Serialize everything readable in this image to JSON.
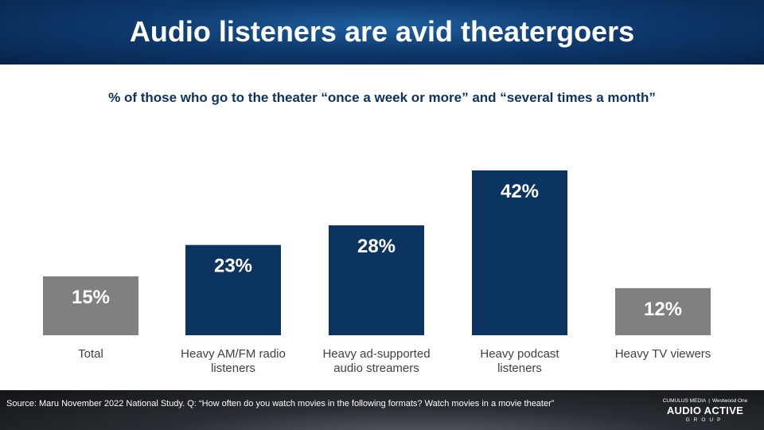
{
  "title": "Audio listeners are avid theatergoers",
  "subtitle": "% of those who go to the theater “once a week or more” and “several times a month”",
  "colors": {
    "gray": "#808080",
    "navy": "#0c3461",
    "header": "#0e3a6e"
  },
  "chart_data": {
    "type": "bar",
    "categories": [
      [
        "Total"
      ],
      [
        "Heavy AM/FM radio",
        "listeners"
      ],
      [
        "Heavy ad-supported",
        "audio streamers"
      ],
      [
        "Heavy podcast",
        "listeners"
      ],
      [
        "Heavy TV viewers"
      ]
    ],
    "values": [
      15,
      23,
      28,
      42,
      12
    ],
    "value_labels": [
      "15%",
      "23%",
      "28%",
      "42%",
      "12%"
    ],
    "bar_colors": [
      "#808080",
      "#0c3461",
      "#0c3461",
      "#0c3461",
      "#808080"
    ],
    "xlabel": "",
    "ylabel": "",
    "ylim": [
      0,
      42
    ],
    "grid": false,
    "legend": "none"
  },
  "footer": {
    "source": "Source: Maru November 2022 National Study. Q: “How often do you watch movies in the following formats? Watch movies in a movie theater”"
  },
  "logo": {
    "brand_a": "CUMULUS MEDIA",
    "brand_b": "Westwood One",
    "name": "AUDIO ACTIVE",
    "sub": "GROUP"
  }
}
